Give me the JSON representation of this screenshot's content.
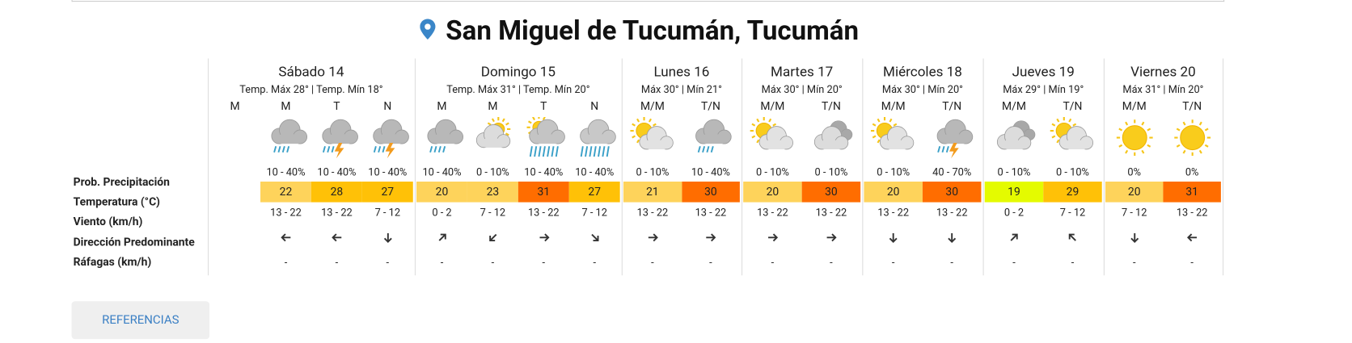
{
  "title": "San Miguel de Tucumán, Tucumán",
  "row_labels": [
    "Prob. Precipitación",
    "Temperatura (°C)",
    "Viento (km/h)",
    "Dirección Predominante",
    "Ráfagas (km/h)"
  ],
  "days": [
    {
      "name": "Sábado 14",
      "summary": "Temp. Máx 28° | Temp. Mín 18°",
      "periods": [
        {
          "label": "M",
          "icon": null,
          "precip": null,
          "temp": null,
          "color": null,
          "wind": null,
          "direction": null,
          "gust": null
        },
        {
          "label": "M",
          "icon": "rain",
          "precip": "10 - 40%",
          "temp": 22,
          "color": "#fed35b",
          "wind": "13 - 22",
          "direction": "left",
          "gust": "-"
        },
        {
          "label": "T",
          "icon": "storm",
          "precip": "10 - 40%",
          "temp": 28,
          "color": "#ffc107",
          "wind": "13 - 22",
          "direction": "left",
          "gust": "-"
        },
        {
          "label": "N",
          "icon": "storm",
          "precip": "10 - 40%",
          "temp": 27,
          "color": "#ffc107",
          "wind": "7 - 12",
          "direction": "down",
          "gust": "-"
        }
      ]
    },
    {
      "name": "Domingo 15",
      "summary": "Temp. Máx 31° | Temp. Mín 20°",
      "periods": [
        {
          "label": "M",
          "icon": "rain",
          "precip": "10 - 40%",
          "temp": 20,
          "color": "#fed35b",
          "wind": "0 - 2",
          "direction": "up-right",
          "gust": "-"
        },
        {
          "label": "M",
          "icon": "partly-cloudy",
          "precip": "0 - 10%",
          "temp": 23,
          "color": "#fed35b",
          "wind": "7 - 12",
          "direction": "down-left",
          "gust": "-"
        },
        {
          "label": "T",
          "icon": "sun-rain",
          "precip": "10 - 40%",
          "temp": 31,
          "color": "#ff6d00",
          "wind": "13 - 22",
          "direction": "right",
          "gust": "-"
        },
        {
          "label": "N",
          "icon": "heavy-rain",
          "precip": "10 - 40%",
          "temp": 27,
          "color": "#ffc107",
          "wind": "7 - 12",
          "direction": "down-right",
          "gust": "-"
        }
      ]
    },
    {
      "name": "Lunes 16",
      "summary": "Máx 30° | Mín 21°",
      "periods": [
        {
          "label": "M/M",
          "icon": "sun-cloud",
          "precip": "0 - 10%",
          "temp": 21,
          "color": "#fed35b",
          "wind": "13 - 22",
          "direction": "right",
          "gust": "-"
        },
        {
          "label": "T/N",
          "icon": "rain",
          "precip": "10 - 40%",
          "temp": 30,
          "color": "#ff6d00",
          "wind": "13 - 22",
          "direction": "right",
          "gust": "-"
        }
      ]
    },
    {
      "name": "Martes 17",
      "summary": "Máx 30° | Mín 20°",
      "periods": [
        {
          "label": "M/M",
          "icon": "sun-cloud",
          "precip": "0 - 10%",
          "temp": 20,
          "color": "#fed35b",
          "wind": "13 - 22",
          "direction": "right",
          "gust": "-"
        },
        {
          "label": "T/N",
          "icon": "cloudy",
          "precip": "0 - 10%",
          "temp": 30,
          "color": "#ff6d00",
          "wind": "13 - 22",
          "direction": "right",
          "gust": "-"
        }
      ]
    },
    {
      "name": "Miércoles 18",
      "summary": "Máx 30° | Mín 20°",
      "periods": [
        {
          "label": "M/M",
          "icon": "sun-cloud",
          "precip": "0 - 10%",
          "temp": 20,
          "color": "#fed35b",
          "wind": "13 - 22",
          "direction": "down",
          "gust": "-"
        },
        {
          "label": "T/N",
          "icon": "storm",
          "precip": "40 - 70%",
          "temp": 30,
          "color": "#ff6d00",
          "wind": "13 - 22",
          "direction": "down",
          "gust": "-"
        }
      ]
    },
    {
      "name": "Jueves 19",
      "summary": "Máx 29° | Mín 19°",
      "periods": [
        {
          "label": "M/M",
          "icon": "cloudy",
          "precip": "0 - 10%",
          "temp": 19,
          "color": "#e4fb00",
          "wind": "0 - 2",
          "direction": "up-right",
          "gust": "-"
        },
        {
          "label": "T/N",
          "icon": "sun-cloud",
          "precip": "0 - 10%",
          "temp": 29,
          "color": "#ffc107",
          "wind": "7 - 12",
          "direction": "up-left",
          "gust": "-"
        }
      ]
    },
    {
      "name": "Viernes 20",
      "summary": "Máx 31° | Mín 20°",
      "periods": [
        {
          "label": "M/M",
          "icon": "sun",
          "precip": "0%",
          "temp": 20,
          "color": "#fed35b",
          "wind": "7 - 12",
          "direction": "down",
          "gust": "-"
        },
        {
          "label": "T/N",
          "icon": "sun",
          "precip": "0%",
          "temp": 31,
          "color": "#ff6d00",
          "wind": "13 - 22",
          "direction": "left",
          "gust": "-"
        }
      ]
    }
  ],
  "button": "REFERENCIAS"
}
